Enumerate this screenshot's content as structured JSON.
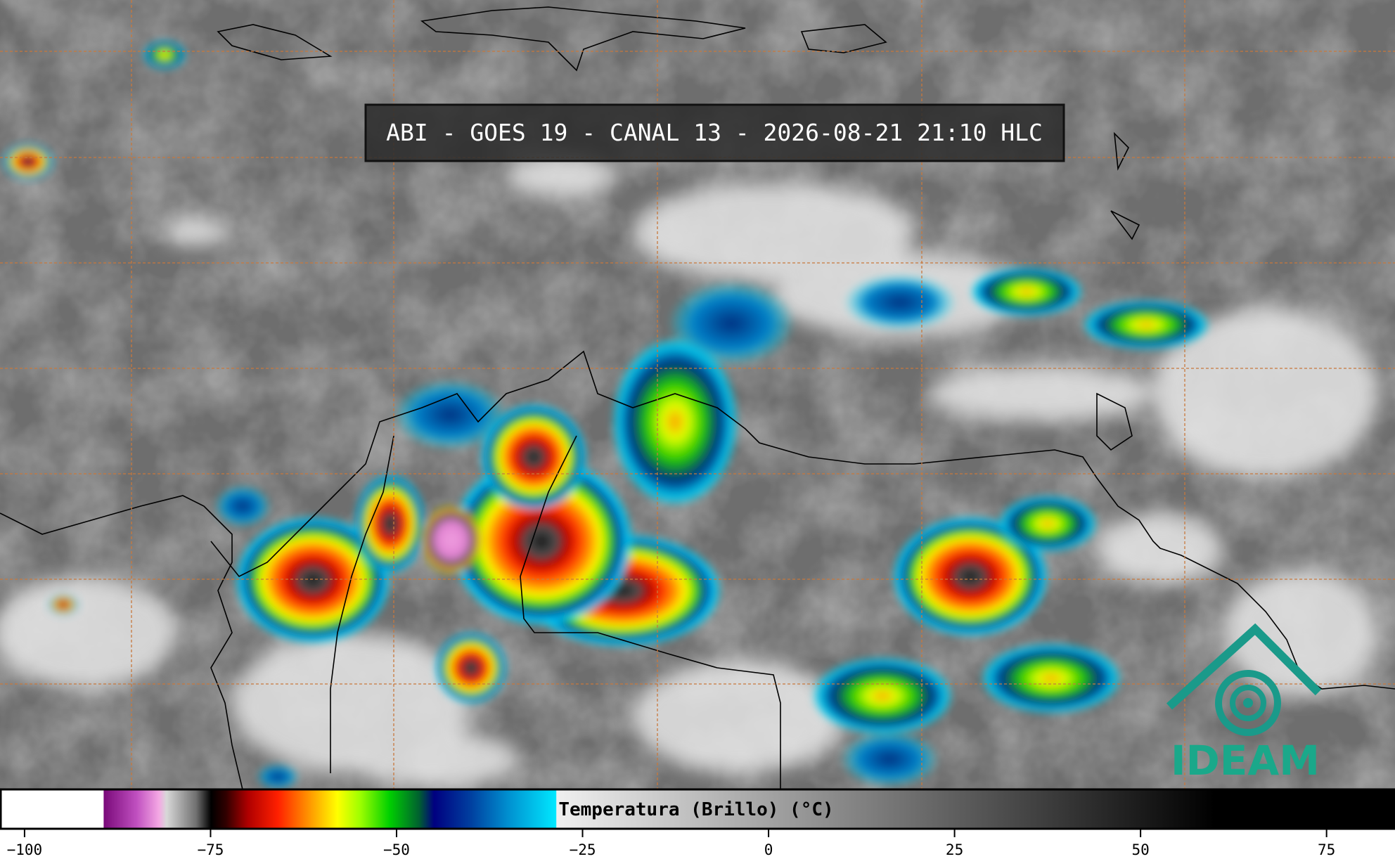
{
  "header": {
    "title": "ABI - GOES 19 - CANAL 13 - 2026-08-21 21:10 HLC"
  },
  "colorbar": {
    "label": "Temperatura (Brillo) (°C)",
    "lim": [
      -103.3,
      84.2
    ],
    "ticks": [
      {
        "value": -100,
        "label": "−100"
      },
      {
        "value": -75,
        "label": "−75"
      },
      {
        "value": -50,
        "label": "−50"
      },
      {
        "value": -25,
        "label": "−25"
      },
      0,
      25,
      50,
      75
    ],
    "colormap": [
      {
        "value": -103.3,
        "color": "#ffffff"
      },
      {
        "value": -89.5,
        "color": "#ffffff"
      },
      {
        "value": -89.4,
        "color": "#7a0a7a"
      },
      {
        "value": -85,
        "color": "#c050c0"
      },
      {
        "value": -82,
        "color": "#f4a8e4"
      },
      {
        "value": -81,
        "color": "#d8d8d8"
      },
      {
        "value": -77,
        "color": "#707070"
      },
      {
        "value": -75,
        "color": "#000000"
      },
      {
        "value": -73,
        "color": "#300000"
      },
      {
        "value": -70,
        "color": "#b00000"
      },
      {
        "value": -66,
        "color": "#ff2000"
      },
      {
        "value": -62,
        "color": "#ff9000"
      },
      {
        "value": -58,
        "color": "#ffff00"
      },
      {
        "value": -55,
        "color": "#a0ff00"
      },
      {
        "value": -51,
        "color": "#00d000"
      },
      {
        "value": -47,
        "color": "#006030"
      },
      {
        "value": -45,
        "color": "#000080"
      },
      {
        "value": -40,
        "color": "#0040a0"
      },
      {
        "value": -35,
        "color": "#0090d0"
      },
      {
        "value": -28.6,
        "color": "#00e8ff"
      },
      {
        "value": -28.5,
        "color": "#f0f0f0"
      },
      {
        "value": 60,
        "color": "#000000"
      },
      {
        "value": 84.2,
        "color": "#000000"
      }
    ]
  },
  "logo": {
    "text": "IDEAM"
  }
}
